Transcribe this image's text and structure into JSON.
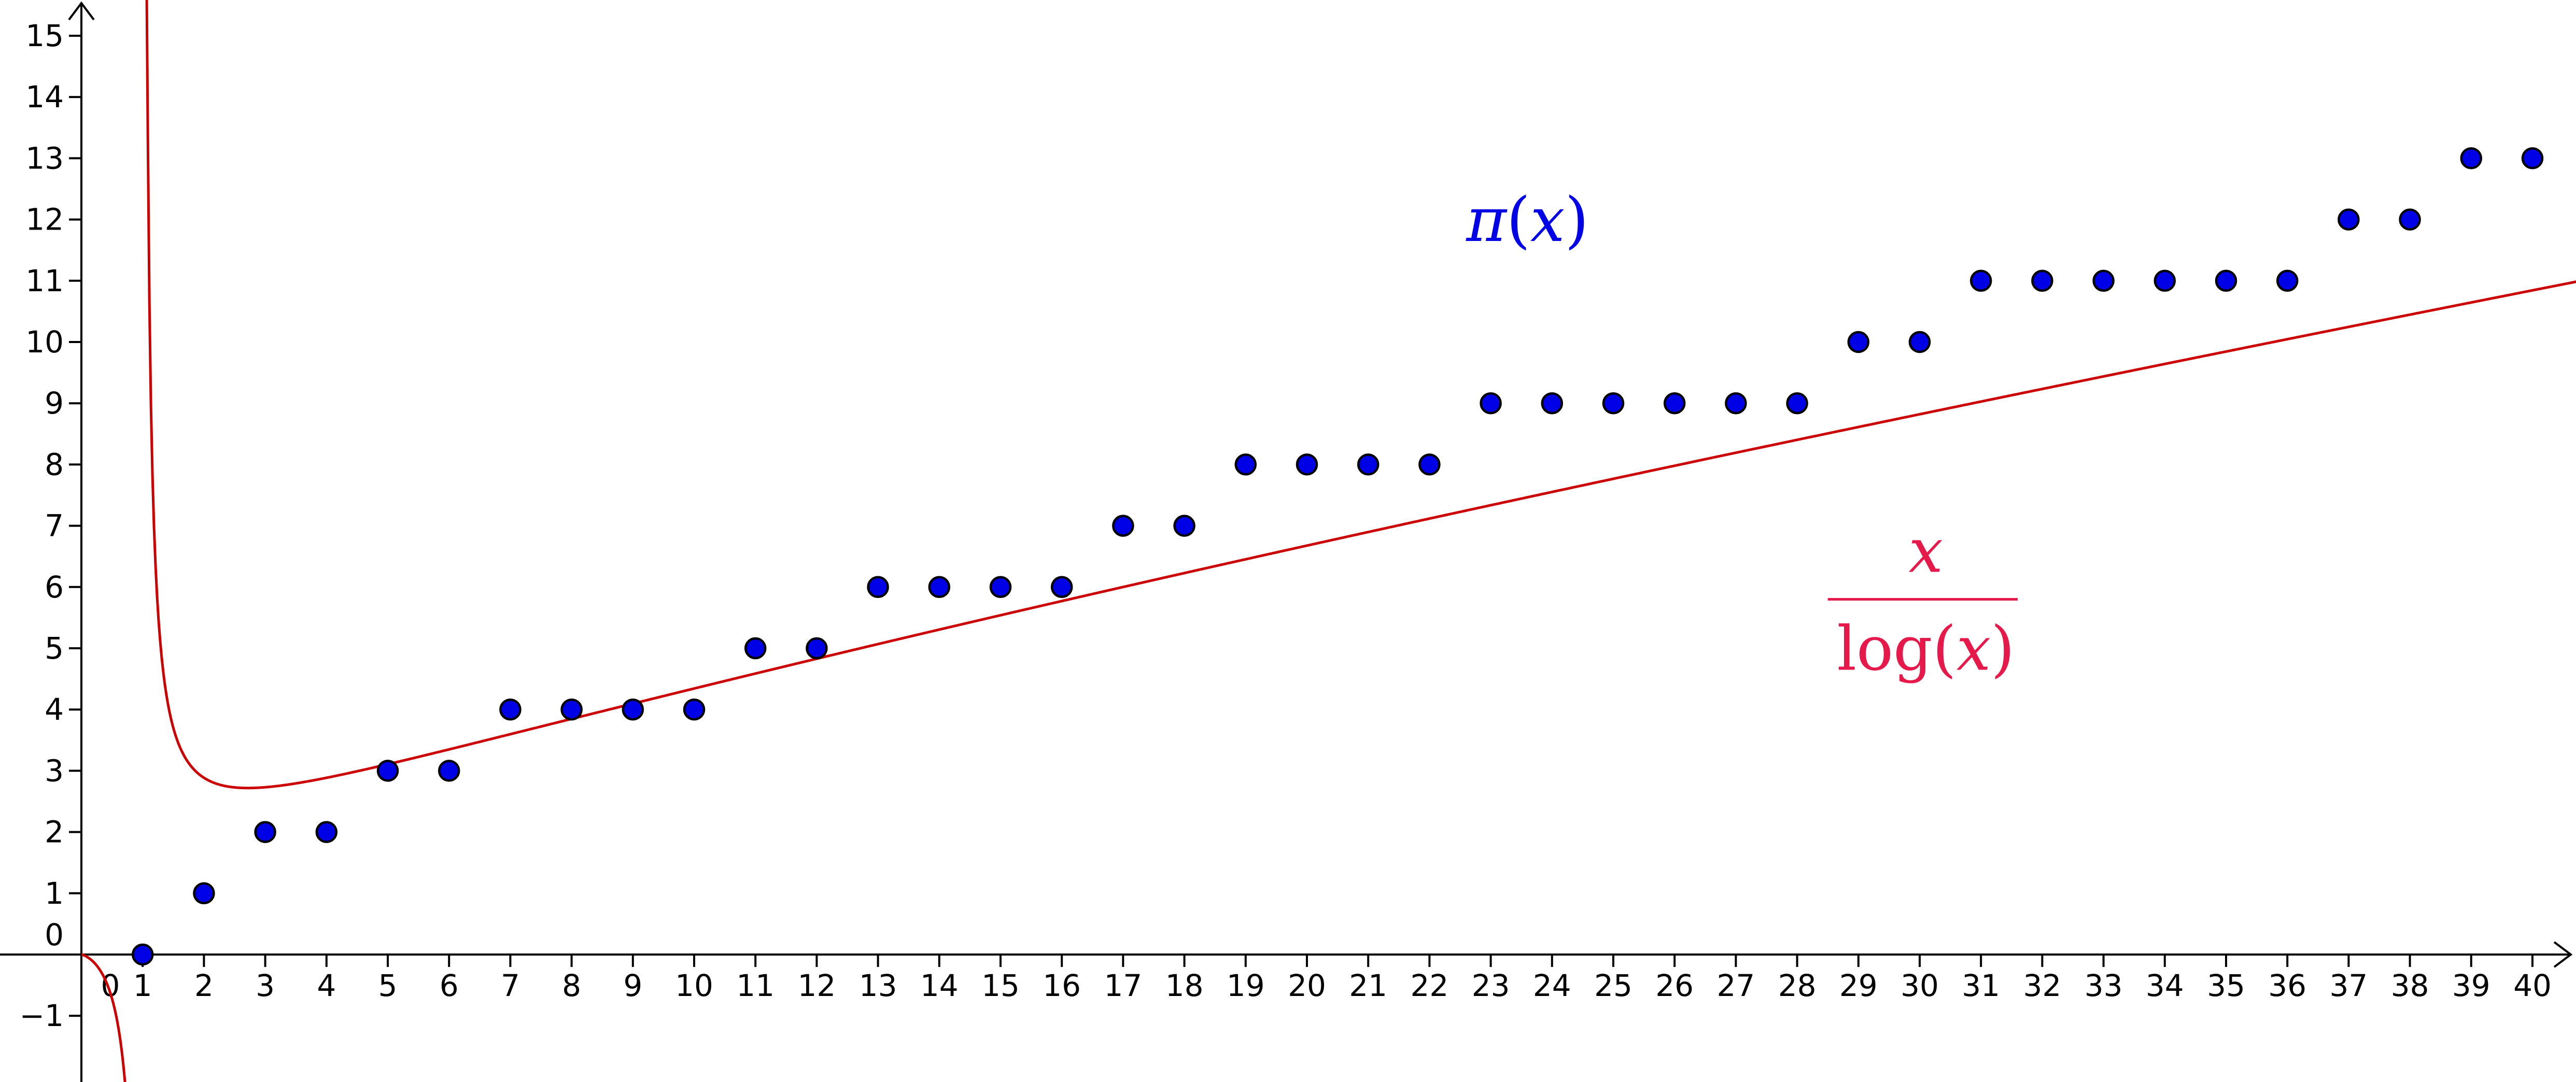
{
  "chart_data": {
    "type": "scatter",
    "title": "",
    "xlabel": "",
    "ylabel": "",
    "xlim": [
      -1.0,
      41.0
    ],
    "ylim": [
      -2.0,
      15.6
    ],
    "grid": false,
    "x_ticks": [
      1,
      2,
      3,
      4,
      5,
      6,
      7,
      8,
      9,
      10,
      11,
      12,
      13,
      14,
      15,
      16,
      17,
      18,
      19,
      20,
      21,
      22,
      23,
      24,
      25,
      26,
      27,
      28,
      29,
      30,
      31,
      32,
      33,
      34,
      35,
      36,
      37,
      38,
      39,
      40
    ],
    "x_tick_labels": [
      "1",
      "2",
      "3",
      "4",
      "5",
      "6",
      "7",
      "8",
      "9",
      "10",
      "11",
      "12",
      "13",
      "14",
      "15",
      "16",
      "17",
      "18",
      "19",
      "20",
      "21",
      "22",
      "23",
      "24",
      "25",
      "26",
      "27",
      "28",
      "29",
      "30",
      "31",
      "32",
      "33",
      "34",
      "35",
      "36",
      "37",
      "38",
      "39",
      "40"
    ],
    "y_ticks": [
      -1,
      1,
      2,
      3,
      4,
      5,
      6,
      7,
      8,
      9,
      10,
      11,
      12,
      13,
      14,
      15
    ],
    "y_tick_labels": [
      "−1",
      "1",
      "2",
      "3",
      "4",
      "5",
      "6",
      "7",
      "8",
      "9",
      "10",
      "11",
      "12",
      "13",
      "14",
      "15"
    ],
    "origin_label": "0",
    "series": [
      {
        "kind": "points",
        "color": "#0000e6",
        "x": [
          1,
          2,
          3,
          4,
          5,
          6,
          7,
          8,
          9,
          10,
          11,
          12,
          13,
          14,
          15,
          16,
          17,
          18,
          19,
          20,
          21,
          22,
          23,
          24,
          25,
          26,
          27,
          28,
          29,
          30,
          31,
          32,
          33,
          34,
          35,
          36,
          37,
          38,
          39,
          40
        ],
        "y": [
          0,
          1,
          2,
          2,
          3,
          3,
          4,
          4,
          4,
          4,
          5,
          5,
          6,
          6,
          6,
          6,
          7,
          7,
          8,
          8,
          8,
          8,
          9,
          9,
          9,
          9,
          9,
          9,
          10,
          10,
          11,
          11,
          11,
          11,
          11,
          11,
          12,
          12,
          13,
          13
        ]
      },
      {
        "kind": "curve",
        "color": "#cc0000",
        "function": "x/log(x)"
      }
    ],
    "annotations": {
      "pi_label": {
        "text_main": "π",
        "text_open": "(",
        "text_var": "x",
        "text_close": ")",
        "color": "#0000e6"
      },
      "fraction_label": {
        "numerator": "x",
        "denominator_func": "log",
        "denominator_open": "(",
        "denominator_var": "x",
        "denominator_close": ")",
        "color": "#e6194b"
      }
    }
  }
}
